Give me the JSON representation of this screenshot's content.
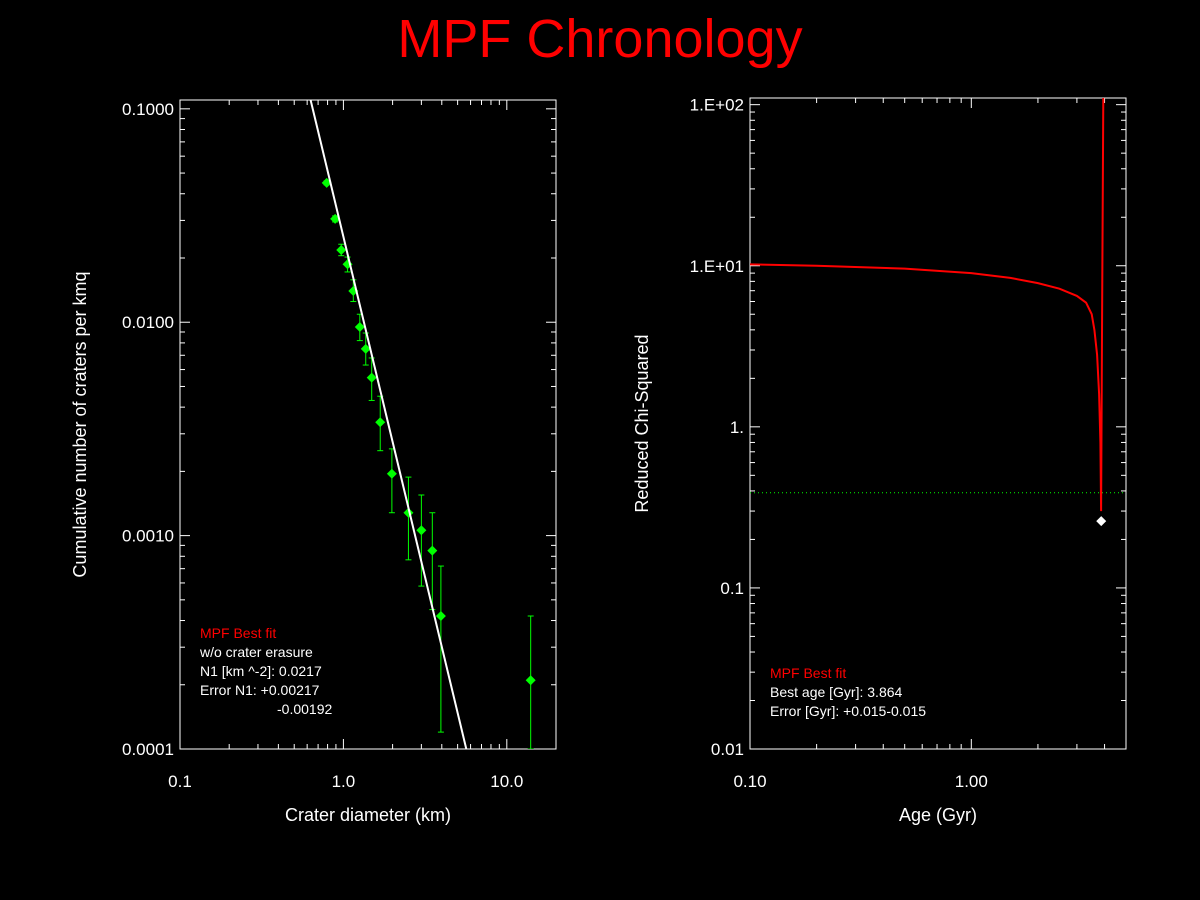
{
  "title": "MPF Chronology",
  "colors": {
    "background": "#000000",
    "text": "#ffffff",
    "title": "#ff0000",
    "data_points": "#00ff00",
    "fit_line": "#ffffff",
    "chi_curve": "#ff0000",
    "reference_line": "#00ff00"
  },
  "chart_data": [
    {
      "type": "scatter",
      "xlabel": "Crater diameter (km)",
      "ylabel": "Cumulative number of craters per kmq",
      "xscale": "log",
      "yscale": "log",
      "xlim": [
        0.1,
        20
      ],
      "ylim": [
        0.0001,
        0.11
      ],
      "xticks": [
        {
          "value": 0.1,
          "label": "0.1"
        },
        {
          "value": 1.0,
          "label": "1.0"
        },
        {
          "value": 10.0,
          "label": "10.0"
        }
      ],
      "yticks": [
        {
          "value": 0.0001,
          "label": "0.0001"
        },
        {
          "value": 0.001,
          "label": "0.0010"
        },
        {
          "value": 0.01,
          "label": "0.0100"
        },
        {
          "value": 0.1,
          "label": "0.1000"
        }
      ],
      "series": [
        {
          "marker": "diamond",
          "points": [
            {
              "x": 0.79,
              "y": 0.045,
              "ylo": 0.044,
              "yhi": 0.046
            },
            {
              "x": 0.89,
              "y": 0.0305,
              "ylo": 0.0295,
              "yhi": 0.0315
            },
            {
              "x": 0.97,
              "y": 0.0218,
              "ylo": 0.0205,
              "yhi": 0.0232
            },
            {
              "x": 1.06,
              "y": 0.0187,
              "ylo": 0.0172,
              "yhi": 0.0202
            },
            {
              "x": 1.15,
              "y": 0.014,
              "ylo": 0.0125,
              "yhi": 0.0158
            },
            {
              "x": 1.26,
              "y": 0.0095,
              "ylo": 0.0082,
              "yhi": 0.0109
            },
            {
              "x": 1.37,
              "y": 0.0075,
              "ylo": 0.0063,
              "yhi": 0.0089
            },
            {
              "x": 1.49,
              "y": 0.0055,
              "ylo": 0.0043,
              "yhi": 0.0068
            },
            {
              "x": 1.68,
              "y": 0.0034,
              "ylo": 0.0025,
              "yhi": 0.0045
            },
            {
              "x": 1.98,
              "y": 0.00195,
              "ylo": 0.00128,
              "yhi": 0.00255
            },
            {
              "x": 2.5,
              "y": 0.00128,
              "ylo": 0.00077,
              "yhi": 0.00188
            },
            {
              "x": 3.0,
              "y": 0.00106,
              "ylo": 0.00058,
              "yhi": 0.00155
            },
            {
              "x": 3.5,
              "y": 0.00085,
              "ylo": 0.00045,
              "yhi": 0.00128
            },
            {
              "x": 3.95,
              "y": 0.00042,
              "ylo": 0.00012,
              "yhi": 0.00072
            },
            {
              "x": 14.0,
              "y": 0.00021,
              "ylo": 0.0001,
              "yhi": 0.00042
            }
          ]
        },
        {
          "marker": "line",
          "points": [
            {
              "x": 0.63,
              "y": 0.11
            },
            {
              "x": 5.65,
              "y": 0.0001
            }
          ]
        }
      ],
      "legend": {
        "heading": "MPF Best fit",
        "lines": [
          "w/o crater erasure",
          "N1 [km ^-2]: 0.0217",
          "Error N1: +0.00217",
          "-0.00192"
        ]
      }
    },
    {
      "type": "line",
      "xlabel": "Age (Gyr)",
      "ylabel": "Reduced Chi-Squared",
      "xscale": "log",
      "yscale": "log",
      "xlim": [
        0.1,
        5.0
      ],
      "ylim": [
        0.01,
        110
      ],
      "xticks": [
        {
          "value": 0.1,
          "label": "0.10"
        },
        {
          "value": 1.0,
          "label": "1.00"
        }
      ],
      "yticks": [
        {
          "value": 0.01,
          "label": "0.01"
        },
        {
          "value": 0.1,
          "label": "0.1"
        },
        {
          "value": 1,
          "label": "1."
        },
        {
          "value": 10,
          "label": "1.E+01"
        },
        {
          "value": 100,
          "label": "1.E+02"
        }
      ],
      "series": [
        {
          "marker": "line",
          "points": [
            {
              "x": 0.1,
              "y": 10.2
            },
            {
              "x": 0.2,
              "y": 10.0
            },
            {
              "x": 0.5,
              "y": 9.6
            },
            {
              "x": 1.0,
              "y": 9.0
            },
            {
              "x": 1.5,
              "y": 8.4
            },
            {
              "x": 2.0,
              "y": 7.8
            },
            {
              "x": 2.5,
              "y": 7.2
            },
            {
              "x": 3.0,
              "y": 6.5
            },
            {
              "x": 3.3,
              "y": 5.9
            },
            {
              "x": 3.5,
              "y": 5.0
            },
            {
              "x": 3.6,
              "y": 4.0
            },
            {
              "x": 3.7,
              "y": 2.8
            },
            {
              "x": 3.78,
              "y": 1.6
            },
            {
              "x": 3.83,
              "y": 0.8
            },
            {
              "x": 3.86,
              "y": 0.3
            },
            {
              "x": 3.9,
              "y": 5.0
            },
            {
              "x": 3.95,
              "y": 110
            }
          ]
        },
        {
          "marker": "diamond",
          "points": [
            {
              "x": 3.864,
              "y": 0.26
            }
          ]
        }
      ],
      "reference_line": {
        "y": 0.39,
        "style": "dotted"
      },
      "legend": {
        "heading": "MPF Best fit",
        "lines": [
          "Best age [Gyr]: 3.864",
          "Error [Gyr]: +0.015-0.015"
        ]
      }
    }
  ]
}
